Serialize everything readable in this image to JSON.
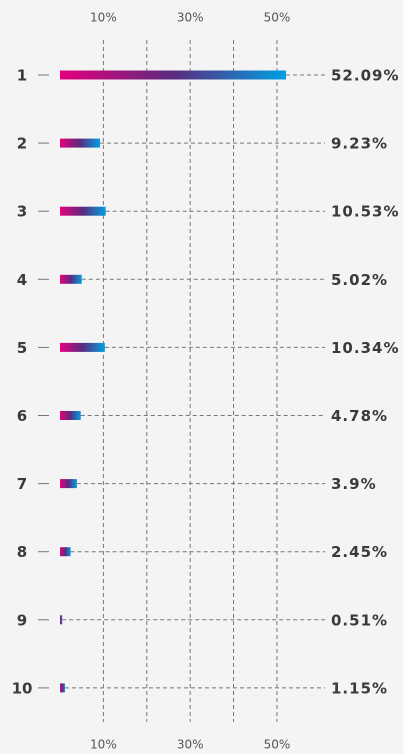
{
  "chart_data": {
    "type": "bar",
    "orientation": "horizontal",
    "categories": [
      "1",
      "2",
      "3",
      "4",
      "5",
      "6",
      "7",
      "8",
      "9",
      "10"
    ],
    "values": [
      52.09,
      9.23,
      10.53,
      5.02,
      10.34,
      4.78,
      3.9,
      2.45,
      0.51,
      1.15
    ],
    "value_labels": [
      "52.09%",
      "9.23%",
      "10.53%",
      "5.02%",
      "10.34%",
      "4.78%",
      "3.9%",
      "2.45%",
      "0.51%",
      "1.15%"
    ],
    "colors": [
      "#e6007e",
      "#5b2a7e",
      "#009fe3"
    ],
    "xlim": [
      0,
      62
    ],
    "xticks": [
      {
        "value": 10,
        "label": "10%"
      },
      {
        "value": 30,
        "label": "30%"
      },
      {
        "value": 50,
        "label": "50%"
      }
    ],
    "minor_xticks": [
      20,
      40
    ],
    "grid": true
  }
}
